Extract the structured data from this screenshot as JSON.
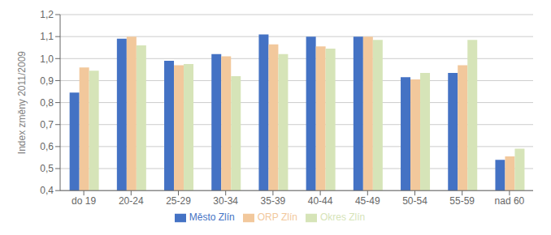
{
  "chart_data": {
    "type": "bar",
    "categories": [
      "do 19",
      "20-24",
      "25-29",
      "30-34",
      "35-39",
      "40-44",
      "45-49",
      "50-54",
      "55-59",
      "nad 60"
    ],
    "series": [
      {
        "name": "Město Zlín",
        "color": "#4472C4",
        "values": [
          0.845,
          1.09,
          0.99,
          1.02,
          1.11,
          1.1,
          1.1,
          0.915,
          0.935,
          0.54
        ]
      },
      {
        "name": "ORP Zlín",
        "color": "#F2C89C",
        "values": [
          0.96,
          1.1,
          0.97,
          1.01,
          1.065,
          1.055,
          1.1,
          0.905,
          0.97,
          0.555
        ]
      },
      {
        "name": "Okres Zlín",
        "color": "#D6E4B8",
        "values": [
          0.945,
          1.06,
          0.975,
          0.92,
          1.02,
          1.045,
          1.085,
          0.935,
          1.085,
          0.59
        ]
      }
    ],
    "ylabel": "Index změny 2011/2009",
    "ylim": [
      0.4,
      1.2
    ],
    "yticks": [
      {
        "value": 0.4,
        "label": "0,4"
      },
      {
        "value": 0.5,
        "label": "0,5"
      },
      {
        "value": 0.6,
        "label": "0,6"
      },
      {
        "value": 0.7,
        "label": "0,7"
      },
      {
        "value": 0.8,
        "label": "0,8"
      },
      {
        "value": 0.9,
        "label": "0,9"
      },
      {
        "value": 1.0,
        "label": "1,0"
      },
      {
        "value": 1.1,
        "label": "1,1"
      },
      {
        "value": 1.2,
        "label": "1,2"
      }
    ],
    "grid": true,
    "legend": "bottom"
  }
}
